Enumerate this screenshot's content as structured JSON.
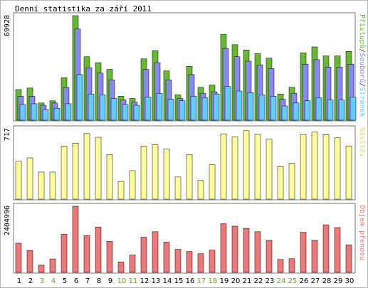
{
  "chart_data": {
    "title": "Denní statistika za září 2011",
    "days": [
      "1",
      "2",
      "3",
      "4",
      "5",
      "6",
      "7",
      "8",
      "9",
      "10",
      "11",
      "12",
      "13",
      "14",
      "15",
      "16",
      "17",
      "18",
      "19",
      "20",
      "21",
      "22",
      "23",
      "24",
      "25",
      "26",
      "27",
      "28",
      "29",
      "30"
    ],
    "weekend_days": [
      "3",
      "4",
      "10",
      "11",
      "17",
      "18",
      "24",
      "25"
    ],
    "colors": {
      "hits": "#66bb33",
      "files": "#8888ee",
      "pages": "#66ccff",
      "visits": "#ffff99",
      "kbytes": "#ee7777",
      "weekday_label": "#000000",
      "weekend_label": "#66aa22"
    },
    "panels": [
      {
        "type": "bar",
        "ymax_label": "69928",
        "ymax": 69928,
        "series_labels": [
          {
            "text": "Přístupů",
            "color": "#66bb33"
          },
          {
            "text": "/",
            "color": "#333333"
          },
          {
            "text": "Souborů",
            "color": "#8888ee"
          },
          {
            "text": "/",
            "color": "#333333"
          },
          {
            "text": "Stránek",
            "color": "#66ccff"
          }
        ],
        "series": [
          {
            "key": "hits",
            "values": [
              20500,
              21500,
              11500,
              13000,
              28500,
              69928,
              42500,
              38500,
              34000,
              16000,
              14500,
              41000,
              46500,
              33000,
              17000,
              36000,
              22000,
              23500,
              57500,
              50500,
              47000,
              44500,
              41500,
              17500,
              22000,
              45000,
              49000,
              43000,
              43000,
              46000
            ]
          },
          {
            "key": "files",
            "values": [
              16000,
              16000,
              10000,
              11500,
              22000,
              61000,
              35000,
              31500,
              27000,
              13500,
              12000,
              34000,
              38500,
              27000,
              14500,
              30500,
              18000,
              19000,
              48000,
              42500,
              39500,
              37000,
              34500,
              14000,
              18000,
              37500,
              40500,
              35500,
              35500,
              37500
            ]
          },
          {
            "key": "pages",
            "values": [
              10500,
              11000,
              7000,
              8000,
              11000,
              30500,
              17500,
              17000,
              14500,
              10500,
              10000,
              15500,
              18000,
              14000,
              13000,
              16000,
              15000,
              17500,
              22500,
              19500,
              18500,
              17000,
              16000,
              9500,
              11500,
              13000,
              15000,
              13500,
              13500,
              15500
            ]
          }
        ]
      },
      {
        "type": "bar",
        "ymax_label": "717",
        "ymax": 717,
        "series_labels": [
          {
            "text": "Návštěv",
            "color": "#dddd77"
          }
        ],
        "series": [
          {
            "key": "visits",
            "values": [
              385,
              420,
              275,
              275,
              540,
              570,
              668,
              630,
              455,
              180,
              290,
              540,
              555,
              510,
              225,
              455,
              190,
              350,
              665,
              635,
              697,
              660,
              610,
              330,
              365,
              658,
              682,
              657,
              624,
              542
            ]
          }
        ]
      },
      {
        "type": "bar",
        "ymax_label": "2404996",
        "ymax": 2404996,
        "series_labels": [
          {
            "text": "Objem přenosu",
            "color": "#ee7777"
          }
        ],
        "series": [
          {
            "key": "kbytes",
            "values": [
              1060000,
              800000,
              260000,
              490000,
              1390000,
              2404996,
              1340000,
              1650000,
              1130000,
              380000,
              630000,
              1280000,
              1480000,
              1100000,
              840000,
              760000,
              680000,
              810000,
              1770000,
              1680000,
              1600000,
              1480000,
              1160000,
              470000,
              500000,
              1460000,
              1160000,
              1730000,
              1630000,
              1000000
            ]
          }
        ]
      }
    ]
  }
}
